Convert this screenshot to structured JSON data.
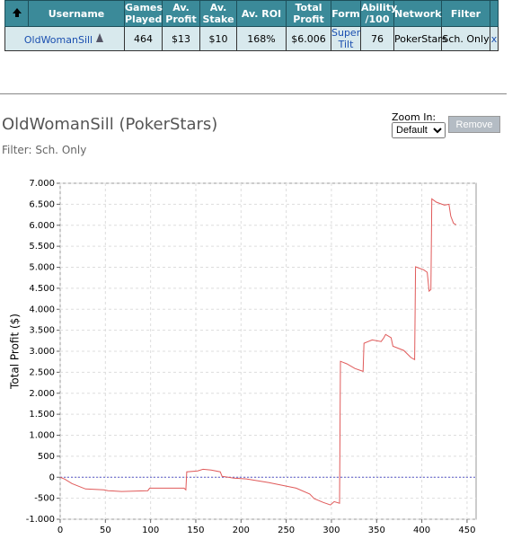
{
  "table": {
    "headers": [
      "Username",
      "Games Played",
      "Av. Profit",
      "Av. Stake",
      "Av. ROI",
      "Total Profit",
      "Form",
      "Ability /100",
      "Network",
      "Filter"
    ],
    "rows": [
      [
        "OldWomanSill",
        464,
        "$13",
        "$10",
        "168%",
        "$6.006",
        "Super Tilt",
        76,
        "PokerStars",
        "Sch. Only",
        "x"
      ]
    ]
  },
  "controls": {
    "zoom_label": "Zoom In:",
    "zoom_option": "Default",
    "button": "Remove"
  },
  "chart_data": {
    "type": "line",
    "title": "OldWomanSill (PokerStars)",
    "subtitle": "Filter: Sch. Only",
    "ylabel": "Total Profit ($)",
    "color": "#e05a5a",
    "grid": true,
    "x": [
      0,
      5,
      13,
      28,
      48,
      53,
      68,
      97,
      99,
      137,
      139,
      140,
      152,
      158,
      167,
      177,
      179,
      192,
      206,
      231,
      261,
      276,
      281,
      291,
      299,
      303,
      309,
      310,
      317,
      326,
      335,
      336,
      345,
      355,
      358,
      360,
      366,
      368,
      380,
      388,
      392,
      393,
      402,
      406,
      408,
      410,
      411,
      416,
      425,
      430,
      432,
      435,
      438
    ],
    "values": [
      0,
      -43,
      -150,
      -280,
      -300,
      -320,
      -340,
      -320,
      -260,
      -260,
      -300,
      130,
      150,
      190,
      170,
      130,
      20,
      -20,
      -40,
      -130,
      -260,
      -400,
      -510,
      -600,
      -660,
      -580,
      -620,
      2760,
      2700,
      2590,
      2520,
      3190,
      3270,
      3230,
      3320,
      3400,
      3320,
      3120,
      3020,
      2850,
      2800,
      5010,
      4940,
      4880,
      4430,
      4470,
      6630,
      6550,
      6480,
      6500,
      6220,
      6050,
      6010
    ],
    "xlim": [
      0,
      460
    ],
    "ylim": [
      -1000,
      7000
    ],
    "xticks": [
      0,
      50,
      100,
      150,
      200,
      250,
      300,
      350,
      400,
      450
    ],
    "yticks": [
      {
        "value": 7000,
        "label": "7.000"
      },
      {
        "value": 6500,
        "label": "6.500"
      },
      {
        "value": 6000,
        "label": "6.000"
      },
      {
        "value": 5500,
        "label": "5.500"
      },
      {
        "value": 5000,
        "label": "5.000"
      },
      {
        "value": 4500,
        "label": "4.500"
      },
      {
        "value": 4000,
        "label": "4.000"
      },
      {
        "value": 3500,
        "label": "3.500"
      },
      {
        "value": 3000,
        "label": "3.000"
      },
      {
        "value": 2500,
        "label": "2.500"
      },
      {
        "value": 2000,
        "label": "2.000"
      },
      {
        "value": 1500,
        "label": "1.500"
      },
      {
        "value": 1000,
        "label": "1.000"
      },
      500,
      0,
      -500,
      {
        "value": -1000,
        "label": "-1.000"
      }
    ]
  }
}
